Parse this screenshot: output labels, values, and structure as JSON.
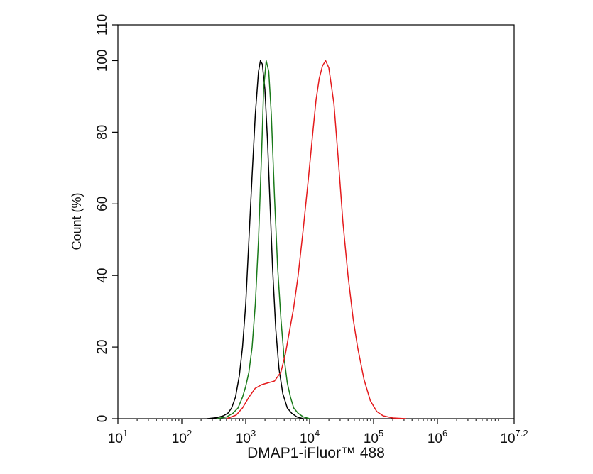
{
  "chart_data": {
    "type": "line",
    "title": "",
    "xlabel": "DMAP1-iFluor™ 488",
    "ylabel": "Count  (%)",
    "x_scale": "log10",
    "xlim": [
      1,
      7.2
    ],
    "ylim": [
      0,
      110
    ],
    "grid": false,
    "legend": "none",
    "x_ticks": [
      {
        "value": 1,
        "base": "10",
        "exp": "1"
      },
      {
        "value": 2,
        "base": "10",
        "exp": "2"
      },
      {
        "value": 3,
        "base": "10",
        "exp": "3"
      },
      {
        "value": 4,
        "base": "10",
        "exp": "4"
      },
      {
        "value": 5,
        "base": "10",
        "exp": "5"
      },
      {
        "value": 6,
        "base": "10",
        "exp": "6"
      },
      {
        "value": 7.2,
        "base": "10",
        "exp": "7.2"
      }
    ],
    "y_ticks": [
      {
        "value": 0,
        "label": "0"
      },
      {
        "value": 20,
        "label": "20"
      },
      {
        "value": 40,
        "label": "40"
      },
      {
        "value": 60,
        "label": "60"
      },
      {
        "value": 80,
        "label": "80"
      },
      {
        "value": 100,
        "label": "100"
      },
      {
        "value": 110,
        "label": "110"
      }
    ],
    "series": [
      {
        "color": "#000000",
        "x": [
          2.4,
          2.55,
          2.65,
          2.72,
          2.78,
          2.84,
          2.9,
          2.95,
          3.0,
          3.05,
          3.1,
          3.15,
          3.2,
          3.23,
          3.26,
          3.3,
          3.34,
          3.38,
          3.42,
          3.47,
          3.52,
          3.58,
          3.65,
          3.72,
          3.8,
          3.9
        ],
        "y": [
          0,
          0.3,
          0.8,
          1.5,
          3,
          6,
          12,
          20,
          32,
          50,
          68,
          85,
          97,
          100,
          99,
          92,
          78,
          60,
          42,
          25,
          14,
          7,
          3,
          1.5,
          0.5,
          0
        ]
      },
      {
        "color": "#1a7a1a",
        "x": [
          2.55,
          2.7,
          2.8,
          2.88,
          2.95,
          3.0,
          3.05,
          3.1,
          3.15,
          3.2,
          3.25,
          3.28,
          3.32,
          3.36,
          3.4,
          3.45,
          3.5,
          3.55,
          3.6,
          3.65,
          3.7,
          3.75,
          3.82,
          3.9,
          4.0
        ],
        "y": [
          0,
          0.5,
          1.5,
          3,
          6,
          9,
          13,
          20,
          32,
          50,
          75,
          92,
          100,
          97,
          85,
          62,
          42,
          28,
          17,
          10,
          6,
          3,
          1.5,
          0.5,
          0
        ]
      },
      {
        "color": "#e41a1c",
        "x": [
          2.7,
          2.85,
          2.95,
          3.05,
          3.15,
          3.25,
          3.35,
          3.45,
          3.55,
          3.62,
          3.68,
          3.75,
          3.82,
          3.9,
          3.98,
          4.05,
          4.1,
          4.15,
          4.2,
          4.25,
          4.3,
          4.38,
          4.45,
          4.52,
          4.6,
          4.68,
          4.75,
          4.85,
          4.95,
          5.05,
          5.15,
          5.3,
          5.5
        ],
        "y": [
          0,
          1,
          3,
          6,
          8.5,
          9.5,
          10,
          10.5,
          13,
          18,
          24,
          31,
          40,
          53,
          67,
          80,
          89,
          95,
          98.5,
          100,
          98,
          88,
          72,
          55,
          40,
          28,
          20,
          11,
          5,
          2,
          0.8,
          0.2,
          0
        ]
      }
    ]
  }
}
